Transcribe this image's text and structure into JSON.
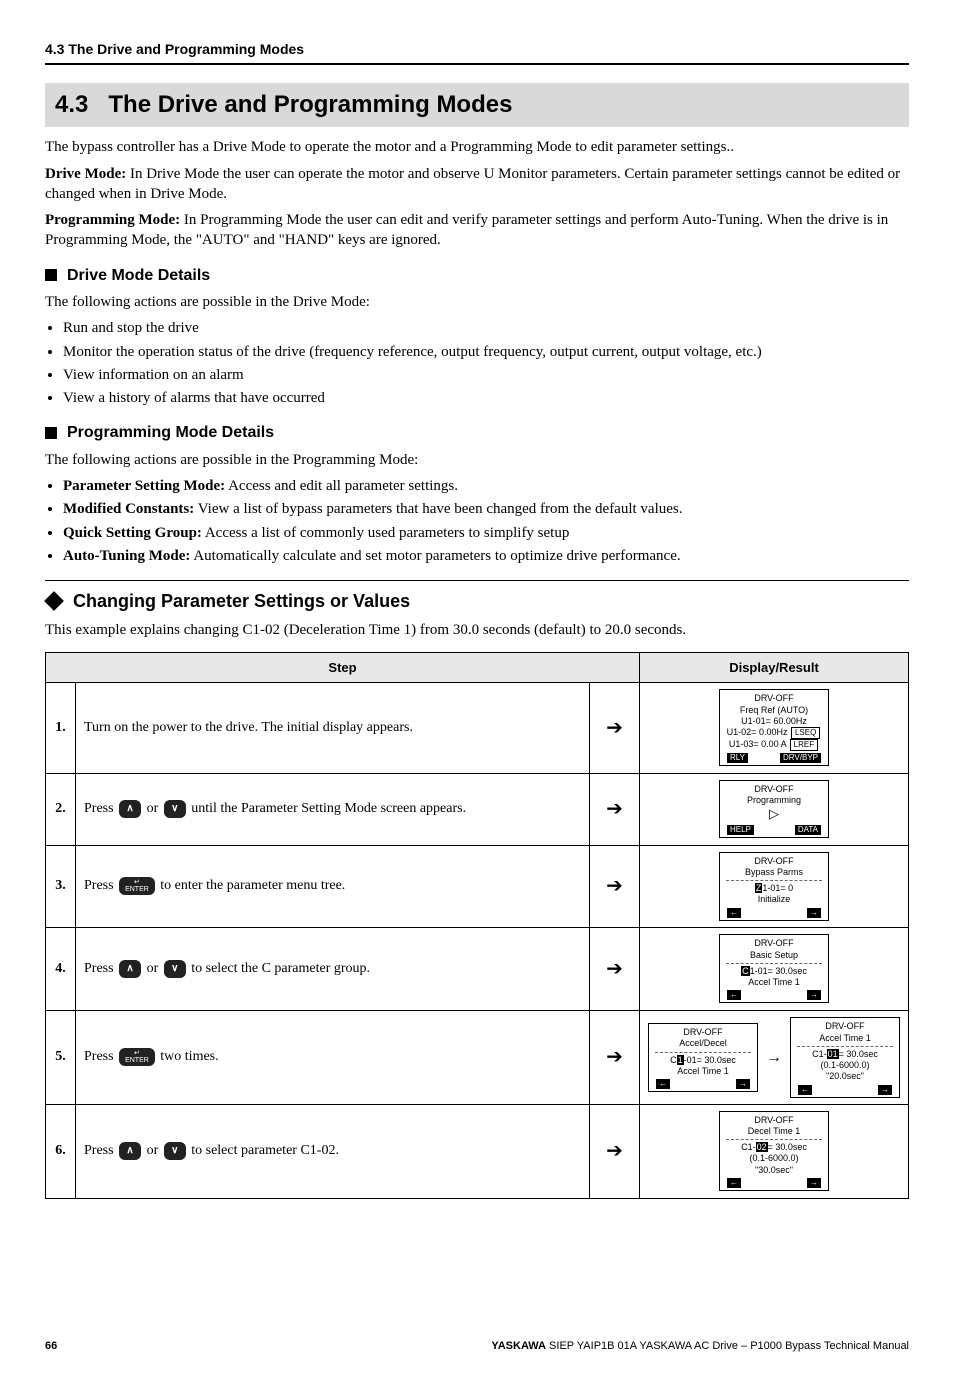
{
  "header": {
    "breadcrumb": "4.3 The Drive and Programming Modes"
  },
  "section": {
    "number": "4.3",
    "title": "The Drive and Programming Modes",
    "intro": "The bypass controller has a Drive Mode to operate the motor and a Programming Mode to edit parameter settings..",
    "drive_mode_label": "Drive Mode:",
    "drive_mode_body": " In Drive Mode the user can operate the motor and observe U Monitor parameters. Certain parameter settings cannot be edited or changed when in Drive Mode.",
    "prog_mode_label": "Programming Mode:",
    "prog_mode_body": " In Programming Mode the user can edit and verify parameter settings and perform Auto-Tuning. When the drive is in Programming Mode, the \"AUTO\" and \"HAND\" keys are ignored."
  },
  "drive_details": {
    "heading": "Drive Mode Details",
    "lead": "The following actions are possible in the Drive Mode:",
    "items": [
      "Run and stop the drive",
      "Monitor the operation status of the drive (frequency reference, output frequency, output current, output voltage, etc.)",
      "View information on an alarm",
      "View a history of alarms that have occurred"
    ]
  },
  "prog_details": {
    "heading": "Programming Mode Details",
    "lead": "The following actions are possible in the Programming Mode:",
    "items": [
      {
        "label": "Parameter Setting Mode:",
        "body": " Access and edit all parameter settings."
      },
      {
        "label": "Modified Constants:",
        "body": " View a list of bypass parameters that have been changed from the default values."
      },
      {
        "label": "Quick Setting Group:",
        "body": " Access a list of commonly used parameters to simplify setup"
      },
      {
        "label": "Auto-Tuning Mode:",
        "body": " Automatically calculate and set motor parameters to optimize drive performance."
      }
    ]
  },
  "changing": {
    "heading": "Changing Parameter Settings or Values",
    "lead": "This example explains changing C1-02 (Deceleration Time 1) from 30.0 seconds (default) to 20.0 seconds."
  },
  "table": {
    "headers": {
      "step": "Step",
      "display": "Display/Result"
    },
    "rows": [
      {
        "n": "1.",
        "text": "Turn on the power to the drive. The initial display appears.",
        "lcd": {
          "top": "DRV-OFF",
          "lines": [
            "Freq Ref (AUTO)",
            "U1-01=  60.00Hz"
          ],
          "tagged": [
            {
              "left": "U1-02=  0.00Hz",
              "tag": "LSEQ"
            },
            {
              "left": "U1-03=  0.00 A",
              "tag": "LREF"
            }
          ],
          "foot": {
            "left": "RLY",
            "right": "DRV/BYP",
            "style": "inv"
          }
        }
      },
      {
        "n": "2.",
        "pre": "Press ",
        "mid": " or ",
        "post": " until the Parameter Setting Mode screen appears.",
        "btns": [
          "up",
          "dn"
        ],
        "lcd": {
          "top": "DRV-OFF",
          "lines": [
            "Programming"
          ],
          "glyph": "▷",
          "foot": {
            "left": "HELP",
            "right": "DATA",
            "style": "inv"
          }
        }
      },
      {
        "n": "3.",
        "pre": "Press ",
        "post": " to enter the parameter menu tree.",
        "btns": [
          "enter"
        ],
        "lcd": {
          "top": "DRV-OFF",
          "lines": [
            "Bypass Parms"
          ],
          "dashed": true,
          "sub": [
            {
              "hl": "Z",
              "rest": "1-01=  0"
            },
            {
              "plain": "Initialize"
            }
          ],
          "foot": {
            "style": "arrows"
          }
        }
      },
      {
        "n": "4.",
        "pre": "Press ",
        "mid": " or ",
        "post": " to select the C parameter group.",
        "btns": [
          "up",
          "dn"
        ],
        "lcd": {
          "top": "DRV-OFF",
          "lines": [
            "Basic Setup"
          ],
          "dashed": true,
          "sub": [
            {
              "hl": "C",
              "rest": "1-01=   30.0sec"
            },
            {
              "plain": "Accel Time 1"
            }
          ],
          "foot": {
            "style": "arrows"
          }
        }
      },
      {
        "n": "5.",
        "pre": "Press ",
        "post": " two times.",
        "btns": [
          "enter"
        ],
        "lcd_pair": [
          {
            "top": "DRV-OFF",
            "lines": [
              "Accel/Decel"
            ],
            "dashed": true,
            "sub": [
              {
                "pre": "C",
                "hl": "1",
                "rest": "-01=   30.0sec"
              },
              {
                "plain": "Accel Time 1"
              }
            ],
            "foot": {
              "style": "arrows"
            }
          },
          {
            "top": "DRV-OFF",
            "lines": [
              "Accel Time 1"
            ],
            "dashed": true,
            "sub": [
              {
                "pre": "C1-",
                "hl": "01",
                "rest": "=     30.0sec"
              },
              {
                "plain": "(0.1-6000.0)"
              },
              {
                "plain": "\"20.0sec\""
              }
            ],
            "foot": {
              "style": "arrows"
            }
          }
        ]
      },
      {
        "n": "6.",
        "pre": "Press ",
        "mid": " or ",
        "post": " to select parameter C1-02.",
        "btns": [
          "up",
          "dn"
        ],
        "lcd": {
          "top": "DRV-OFF",
          "lines": [
            "Decel Time 1"
          ],
          "dashed": true,
          "sub": [
            {
              "pre": "C1-",
              "hl": "02",
              "rest": "=     30.0sec"
            },
            {
              "plain": "(0.1-6000.0)"
            },
            {
              "plain": "\"30.0sec\""
            }
          ],
          "foot": {
            "style": "arrows"
          }
        }
      }
    ]
  },
  "footer": {
    "page": "66",
    "brand": "YASKAWA",
    "doc": " SIEP YAIP1B 01A YASKAWA AC Drive – P1000 Bypass Technical Manual"
  }
}
